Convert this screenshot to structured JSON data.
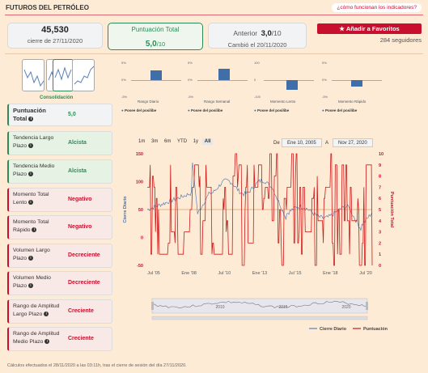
{
  "header": {
    "title": "FUTUROS DEL PETRÓLEO",
    "help_link": "¿cómo funcionan los indicadores?"
  },
  "summary": {
    "price": "45,530",
    "price_date": "cierre de 27/11/2020",
    "score_title": "Puntuación Total",
    "score_value": "5,0",
    "score_max": "/10",
    "prev_label": "Anterior",
    "prev_value": "3,0",
    "prev_max": "/10",
    "prev_changed": "Cambió el 20/11/2020"
  },
  "favorites": {
    "button_label": "Añadir a Favoritos",
    "followers": "284 seguidores"
  },
  "consolidation_label": "Consolidación",
  "indicators": [
    {
      "label": "Puntuación Total",
      "value": "5,0",
      "kind": "total"
    },
    {
      "label": "Tendencia Largo Plazo",
      "value": "Alcista",
      "kind": "pos"
    },
    {
      "label": "Tendencia Medio Plazo",
      "value": "Alcista",
      "kind": "pos"
    },
    {
      "label": "Momento Total Lento",
      "value": "Negativo",
      "kind": "neg"
    },
    {
      "label": "Momento Total Rápido",
      "value": "Negativo",
      "kind": "neg"
    },
    {
      "label": "Volumen Largo Plazo",
      "value": "Decreciente",
      "kind": "neg"
    },
    {
      "label": "Volumen Medio Plazo",
      "value": "Decreciente",
      "kind": "neg"
    },
    {
      "label": "Rango de Amplitud Largo Plazo",
      "value": "Creciente",
      "kind": "neg"
    },
    {
      "label": "Rango de Amplitud Medio Plazo",
      "value": "Creciente",
      "kind": "neg"
    }
  ],
  "small_charts": [
    {
      "caption": "Rango Diario",
      "legend": "Posee del posilibe",
      "tick_top": "5%",
      "tick_mid": "0%",
      "tick_bot": "-5%"
    },
    {
      "caption": "Rango Semanal",
      "legend": "Posee del posilibe",
      "tick_top": "5%",
      "tick_mid": "0%",
      "tick_bot": "-5%"
    },
    {
      "caption": "Momento Lento",
      "legend": "Posee del posilibe",
      "tick_top": "100",
      "tick_mid": "0",
      "tick_bot": "-100"
    },
    {
      "caption": "Momento Rápido",
      "legend": "Posee del posilibe",
      "tick_top": "5%",
      "tick_mid": "0%",
      "tick_bot": "-5%"
    }
  ],
  "range_selector": {
    "buttons": [
      "1m",
      "3m",
      "6m",
      "YTD",
      "1y",
      "All"
    ],
    "active": "All",
    "from_label": "De",
    "from_value": "Ene 10, 2005",
    "to_label": "A",
    "to_value": "Nov 27, 2020"
  },
  "chart_data": {
    "type": "line",
    "x_ticks": [
      "Jul '05",
      "Ene '08",
      "Jul '10",
      "Ene '13",
      "Jul '15",
      "Ene '18",
      "Jul '20"
    ],
    "y_left_ticks": [
      "150",
      "100",
      "50",
      "0",
      "-50"
    ],
    "y_left_label": "Cierre Diario",
    "y_right_ticks": [
      "10",
      "9",
      "8",
      "7",
      "6",
      "5",
      "4",
      "3",
      "2",
      "1",
      "0"
    ],
    "y_right_label": "Puntuación Total",
    "navigator_ticks": [
      "2010",
      "2015",
      "2020"
    ],
    "series": [
      {
        "name": "Cierre Diario",
        "color": "#5b7fb6"
      },
      {
        "name": "Puntuación",
        "color": "#d01818"
      }
    ],
    "reference_line": 50
  },
  "colors": {
    "accent": "#c8102e",
    "positive": "#2e8b57",
    "line_blue": "#5b7fb6",
    "line_red": "#d01818"
  },
  "footer": "Cálculos efectuados el 28/11/2020 a las 03:11h, tras el cierre de sesión del día 27/11/2020."
}
